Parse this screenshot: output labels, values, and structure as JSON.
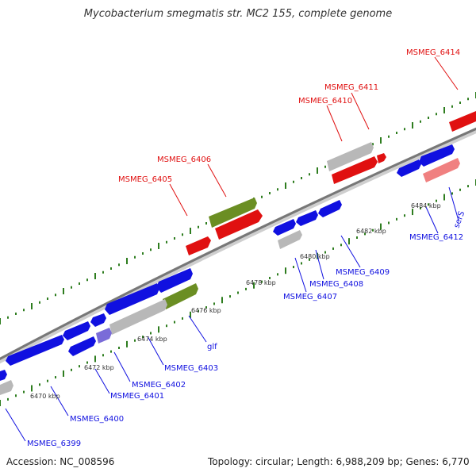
{
  "title": "Mycobacterium smegmatis str. MC2 155, complete genome",
  "footer": {
    "accession": "Accession: NC_008596",
    "summary": "Topology: circular; Length: 6,988,209 bp; Genes: 6,770"
  },
  "colors": {
    "forward_gene": "#ff0000",
    "reverse_gene": "#0000ff",
    "pseudogene": "#aaaaaa",
    "rna_gene": "#6b8e23",
    "backbone": "#777777",
    "gc_ticks": "#2e7d1f"
  },
  "scale_ticks": [
    {
      "label": "6470 kbp"
    },
    {
      "label": "6472 kbp"
    },
    {
      "label": "6474 kbp"
    },
    {
      "label": "6476 kbp"
    },
    {
      "label": "6478 kbp"
    },
    {
      "label": "6480 kbp"
    },
    {
      "label": "6482 kbp"
    },
    {
      "label": "6484 kbp"
    }
  ],
  "top_labels": [
    {
      "text": "MSMEG_6405"
    },
    {
      "text": "MSMEG_6406"
    },
    {
      "text": "MSMEG_6410"
    },
    {
      "text": "MSMEG_6411"
    },
    {
      "text": "MSMEG_6414"
    }
  ],
  "bottom_labels": [
    {
      "text": "MSMEG_6399"
    },
    {
      "text": "MSMEG_6400"
    },
    {
      "text": "MSMEG_6401"
    },
    {
      "text": "MSMEG_6402"
    },
    {
      "text": "MSMEG_6403"
    },
    {
      "text": "glf"
    },
    {
      "text": "MSMEG_6407"
    },
    {
      "text": "MSMEG_6408"
    },
    {
      "text": "MSMEG_6409"
    },
    {
      "text": "MSMEG_6412"
    },
    {
      "text": "serS"
    }
  ]
}
